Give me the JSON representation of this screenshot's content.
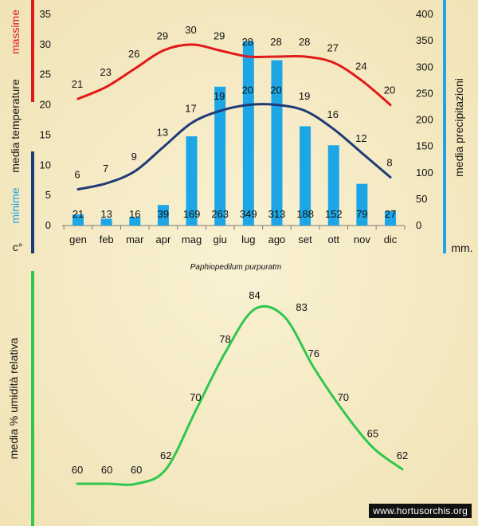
{
  "colors": {
    "background": "#f5ecc6",
    "max_line": "#e01a1a",
    "min_line": "#1f3a78",
    "bars": "#1ca6e6",
    "humidity_line": "#2fc84c",
    "axis_red": "#e01a1a",
    "axis_navy": "#1f3a78",
    "axis_cyan": "#1ca6e6",
    "axis_green": "#2fc84c"
  },
  "chart_data": [
    {
      "type": "bar+line",
      "title": "",
      "categories": [
        "gen",
        "feb",
        "mar",
        "apr",
        "mag",
        "giu",
        "lug",
        "ago",
        "set",
        "ott",
        "nov",
        "dic"
      ],
      "series": [
        {
          "name": "massime",
          "kind": "line",
          "axis": "left",
          "values": [
            21,
            23,
            26,
            29,
            30,
            29,
            28,
            28,
            28,
            27,
            24,
            20
          ]
        },
        {
          "name": "minime",
          "kind": "line",
          "axis": "left",
          "values": [
            6,
            7,
            9,
            13,
            17,
            19,
            20,
            20,
            19,
            16,
            12,
            8
          ]
        },
        {
          "name": "precipitazioni",
          "kind": "bar",
          "axis": "right",
          "values": [
            21,
            13,
            16,
            39,
            169,
            263,
            349,
            313,
            188,
            152,
            79,
            27
          ]
        }
      ],
      "left_axis": {
        "ylim": [
          0,
          35
        ],
        "ticks": [
          0,
          5,
          10,
          15,
          20,
          25,
          30,
          35
        ]
      },
      "right_axis": {
        "ylim": [
          0,
          400
        ],
        "ticks": [
          0,
          50,
          100,
          150,
          200,
          250,
          300,
          350,
          400
        ]
      },
      "labels": {
        "left_max": "massime",
        "left_mid": "media temperature",
        "left_min": "minime",
        "left_unit": "c°",
        "right": "media precipitazioni",
        "right_unit": "mm.",
        "caption": "Paphiopedilum purpuratm"
      }
    },
    {
      "type": "line",
      "title": "",
      "categories": [
        "gen",
        "feb",
        "mar",
        "apr",
        "mag",
        "giu",
        "lug",
        "ago",
        "set",
        "ott",
        "nov",
        "dic"
      ],
      "series": [
        {
          "name": "media % umidità relativa",
          "values": [
            60,
            60,
            60,
            62,
            70,
            78,
            84,
            83,
            76,
            70,
            65,
            62
          ]
        }
      ],
      "ylim": [
        55,
        90
      ],
      "ylabel": "media % umidità relativa"
    }
  ],
  "watermark": "www.hortusorchis.org"
}
